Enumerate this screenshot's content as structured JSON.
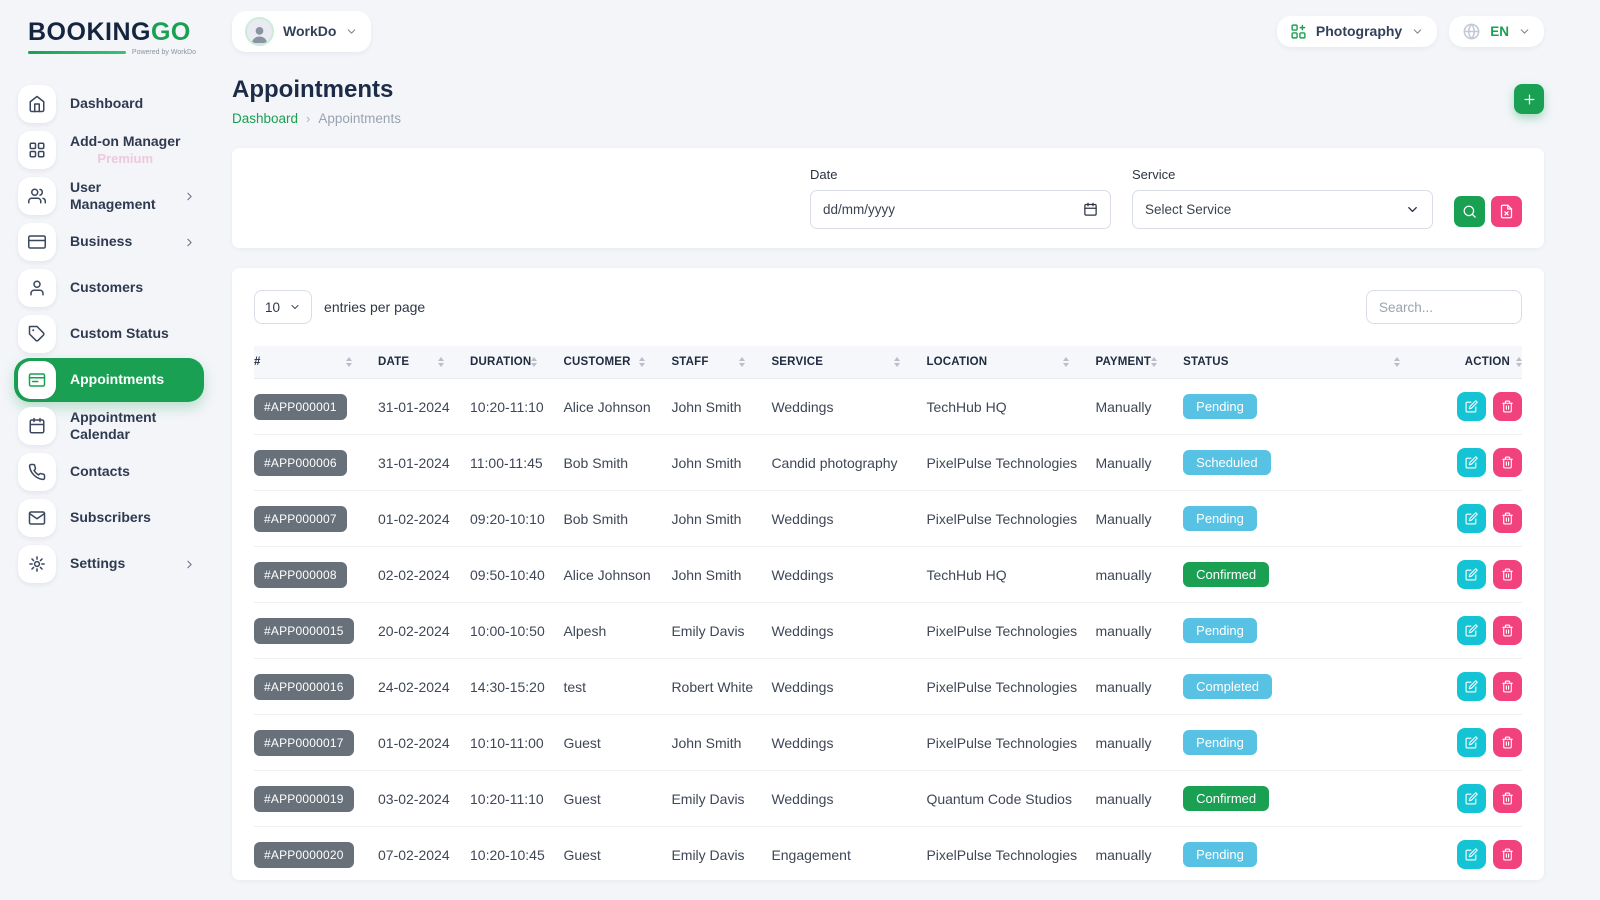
{
  "brand": {
    "name_primary": "BOOKING",
    "name_accent": "GO",
    "tagline": "Powered by WorkDo"
  },
  "topbar": {
    "workspace_label": "WorkDo",
    "category_label": "Photography",
    "language_label": "EN"
  },
  "sidebar": {
    "items": [
      {
        "label": "Dashboard",
        "icon": "home",
        "active": false,
        "chevron": false,
        "sub": ""
      },
      {
        "label": "Add-on Manager",
        "icon": "grid",
        "active": false,
        "chevron": false,
        "sub": "Premium"
      },
      {
        "label": "User Management",
        "icon": "users",
        "active": false,
        "chevron": true,
        "sub": ""
      },
      {
        "label": "Business",
        "icon": "credit-card",
        "active": false,
        "chevron": true,
        "sub": ""
      },
      {
        "label": "Customers",
        "icon": "user",
        "active": false,
        "chevron": false,
        "sub": ""
      },
      {
        "label": "Custom Status",
        "icon": "tag",
        "active": false,
        "chevron": false,
        "sub": ""
      },
      {
        "label": "Appointments",
        "icon": "card",
        "active": true,
        "chevron": false,
        "sub": ""
      },
      {
        "label": "Appointment Calendar",
        "icon": "calendar",
        "active": false,
        "chevron": false,
        "sub": ""
      },
      {
        "label": "Contacts",
        "icon": "phone",
        "active": false,
        "chevron": false,
        "sub": ""
      },
      {
        "label": "Subscribers",
        "icon": "mail",
        "active": false,
        "chevron": false,
        "sub": ""
      },
      {
        "label": "Settings",
        "icon": "gear",
        "active": false,
        "chevron": true,
        "sub": ""
      }
    ]
  },
  "page": {
    "title": "Appointments",
    "breadcrumb_link": "Dashboard",
    "breadcrumb_sep": "›",
    "breadcrumb_current": "Appointments"
  },
  "filters": {
    "date_label": "Date",
    "date_value": "dd/mm/yyyy",
    "service_label": "Service",
    "service_value": "Select Service"
  },
  "table": {
    "page_size": "10",
    "entries_label": "entries per page",
    "search_placeholder": "Search...",
    "headers": [
      "#",
      "DATE",
      "DURATION",
      "CUSTOMER",
      "STAFF",
      "SERVICE",
      "LOCATION",
      "PAYMENT",
      "STATUS",
      "ACTION"
    ],
    "rows": [
      {
        "id": "#APP000001",
        "date": "31-01-2024",
        "duration": "10:20-11:10",
        "customer": "Alice Johnson",
        "staff": "John Smith",
        "service": "Weddings",
        "location": "TechHub HQ",
        "payment": "Manually",
        "status": "Pending",
        "status_type": "info"
      },
      {
        "id": "#APP000006",
        "date": "31-01-2024",
        "duration": "11:00-11:45",
        "customer": "Bob Smith",
        "staff": "John Smith",
        "service": "Candid photography",
        "location": "PixelPulse Technologies",
        "payment": "Manually",
        "status": "Scheduled",
        "status_type": "info"
      },
      {
        "id": "#APP000007",
        "date": "01-02-2024",
        "duration": "09:20-10:10",
        "customer": "Bob Smith",
        "staff": "John Smith",
        "service": "Weddings",
        "location": "PixelPulse Technologies",
        "payment": "Manually",
        "status": "Pending",
        "status_type": "info"
      },
      {
        "id": "#APP000008",
        "date": "02-02-2024",
        "duration": "09:50-10:40",
        "customer": "Alice Johnson",
        "staff": "John Smith",
        "service": "Weddings",
        "location": "TechHub HQ",
        "payment": "manually",
        "status": "Confirmed",
        "status_type": "success"
      },
      {
        "id": "#APP0000015",
        "date": "20-02-2024",
        "duration": "10:00-10:50",
        "customer": "Alpesh",
        "staff": "Emily Davis",
        "service": "Weddings",
        "location": "PixelPulse Technologies",
        "payment": "manually",
        "status": "Pending",
        "status_type": "info"
      },
      {
        "id": "#APP0000016",
        "date": "24-02-2024",
        "duration": "14:30-15:20",
        "customer": "test",
        "staff": "Robert White",
        "service": "Weddings",
        "location": "PixelPulse Technologies",
        "payment": "manually",
        "status": "Completed",
        "status_type": "info"
      },
      {
        "id": "#APP0000017",
        "date": "01-02-2024",
        "duration": "10:10-11:00",
        "customer": "Guest",
        "staff": "John Smith",
        "service": "Weddings",
        "location": "PixelPulse Technologies",
        "payment": "manually",
        "status": "Pending",
        "status_type": "info"
      },
      {
        "id": "#APP0000019",
        "date": "03-02-2024",
        "duration": "10:20-11:10",
        "customer": "Guest",
        "staff": "Emily Davis",
        "service": "Weddings",
        "location": "Quantum Code Studios",
        "payment": "manually",
        "status": "Confirmed",
        "status_type": "success"
      },
      {
        "id": "#APP0000020",
        "date": "07-02-2024",
        "duration": "10:20-10:45",
        "customer": "Guest",
        "staff": "Emily Davis",
        "service": "Engagement",
        "location": "PixelPulse Technologies",
        "payment": "manually",
        "status": "Pending",
        "status_type": "info"
      }
    ]
  },
  "colors": {
    "primary": "#1aa053",
    "info": "#57c2e3",
    "teal": "#14c4d4",
    "danger": "#f1427e",
    "badge_gray": "#687079",
    "premium": "#eec9de"
  }
}
